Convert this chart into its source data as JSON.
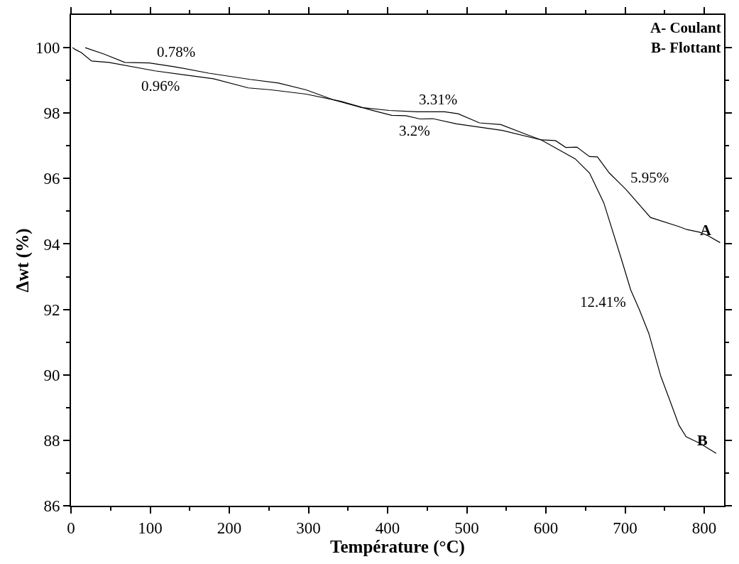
{
  "chart_data": {
    "type": "line",
    "xlabel": "Température (°C)",
    "ylabel": "Δwt (%)",
    "xlim": [
      0,
      825
    ],
    "ylim": [
      86,
      101
    ],
    "xticks": [
      0,
      {
        "value": 50,
        "label": null
      },
      100,
      {
        "value": 150,
        "label": null
      },
      200,
      {
        "value": 250,
        "label": null
      },
      300,
      {
        "value": 350,
        "label": null
      },
      400,
      {
        "value": 450,
        "label": null
      },
      500,
      {
        "value": 550,
        "label": null
      },
      600,
      {
        "value": 650,
        "label": null
      },
      700,
      {
        "value": 750,
        "label": null
      },
      800
    ],
    "yticks": [
      86,
      {
        "value": 87,
        "label": null
      },
      88,
      {
        "value": 89,
        "label": null
      },
      90,
      {
        "value": 91,
        "label": null
      },
      92,
      {
        "value": 93,
        "label": null
      },
      94,
      {
        "value": 95,
        "label": null
      },
      96,
      {
        "value": 97,
        "label": null
      },
      98,
      {
        "value": 99,
        "label": null
      },
      100
    ],
    "grid": false,
    "legend": "right",
    "marker": "none",
    "line_style": "solid",
    "series": [
      {
        "name": "A",
        "color": "#000000",
        "x": [
          18,
          42,
          68,
          99,
          130,
          174,
          226,
          262,
          297,
          332,
          367,
          402,
          437,
          472,
          489,
          516,
          543,
          577,
          594,
          612,
          625,
          639,
          655,
          665,
          680,
          701,
          732,
          768,
          778,
          794,
          805,
          820
        ],
        "values": [
          100.0,
          99.8,
          99.55,
          99.53,
          99.42,
          99.22,
          99.03,
          98.92,
          98.71,
          98.4,
          98.17,
          98.08,
          98.04,
          98.04,
          97.98,
          97.7,
          97.65,
          97.33,
          97.18,
          97.16,
          96.95,
          96.96,
          96.67,
          96.66,
          96.17,
          95.67,
          94.81,
          94.53,
          94.44,
          94.36,
          94.25,
          94.04
        ]
      },
      {
        "name": "B",
        "color": "#000000",
        "x": [
          2,
          5,
          13,
          26,
          48,
          106,
          180,
          224,
          253,
          297,
          341,
          378,
          405,
          423,
          441,
          457,
          487,
          545,
          594,
          637,
          655,
          673,
          695,
          707,
          718,
          730,
          745,
          756,
          768,
          777,
          795,
          815
        ],
        "values": [
          100.0,
          99.95,
          99.85,
          99.59,
          99.55,
          99.29,
          99.05,
          98.77,
          98.71,
          98.58,
          98.36,
          98.1,
          97.93,
          97.92,
          97.82,
          97.83,
          97.67,
          97.47,
          97.18,
          96.6,
          96.17,
          95.26,
          93.56,
          92.6,
          91.99,
          91.26,
          89.96,
          89.25,
          88.46,
          88.11,
          87.9,
          87.6
        ]
      }
    ],
    "annotations": [
      "A- Coulant",
      "B- Flottant",
      {
        "text": "0.78%",
        "x": 103,
        "y": 99.5
      },
      {
        "text": "0.96%",
        "x": 143,
        "y": 99.2
      },
      {
        "text": "3.31%",
        "x": 434,
        "y": 98.04
      },
      {
        "text": "3.2%",
        "x": 459,
        "y": 97.83
      },
      {
        "text": "5.95%",
        "x": 701,
        "y": 95.67
      },
      {
        "text": "12.41%",
        "x": 707,
        "y": 92.6
      }
    ]
  }
}
